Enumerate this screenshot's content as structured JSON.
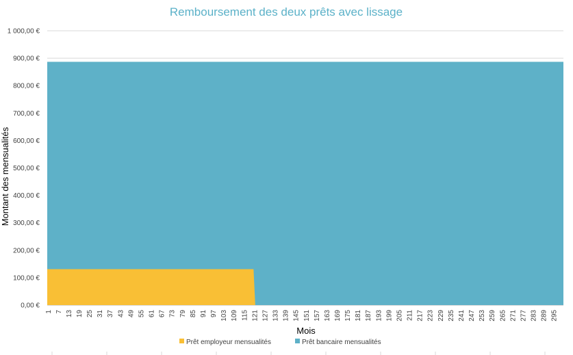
{
  "chart_data": {
    "type": "area",
    "stacked": true,
    "title": "Remboursement des deux prêts avec lissage",
    "xlabel": "Mois",
    "ylabel": "Montant des mensualités",
    "ylim": [
      0,
      1000
    ],
    "y_ticks": [
      "0,00 €",
      "100,00 €",
      "200,00 €",
      "300,00 €",
      "400,00 €",
      "500,00 €",
      "600,00 €",
      "700,00 €",
      "800,00 €",
      "900,00 €",
      "1 000,00 €"
    ],
    "x_range": [
      1,
      300
    ],
    "x_ticks": [
      "1",
      "7",
      "13",
      "19",
      "25",
      "31",
      "37",
      "43",
      "49",
      "55",
      "61",
      "67",
      "73",
      "79",
      "85",
      "91",
      "97",
      "103",
      "109",
      "115",
      "121",
      "127",
      "133",
      "139",
      "145",
      "151",
      "157",
      "163",
      "169",
      "175",
      "181",
      "187",
      "193",
      "199",
      "205",
      "211",
      "217",
      "223",
      "229",
      "235",
      "241",
      "247",
      "253",
      "259",
      "265",
      "271",
      "277",
      "283",
      "289",
      "295"
    ],
    "grid": true,
    "legend_position": "bottom",
    "series": [
      {
        "name": "Prêt employeur mensualités",
        "color": "#f9bf35",
        "segments": [
          {
            "from": 1,
            "to": 120,
            "value": 131
          }
        ]
      },
      {
        "name": "Prêt bancaire mensualités",
        "color": "#5eb1c8",
        "total_after_stack": 887,
        "segments": [
          {
            "from": 1,
            "to": 300,
            "value": 887
          }
        ]
      }
    ]
  }
}
